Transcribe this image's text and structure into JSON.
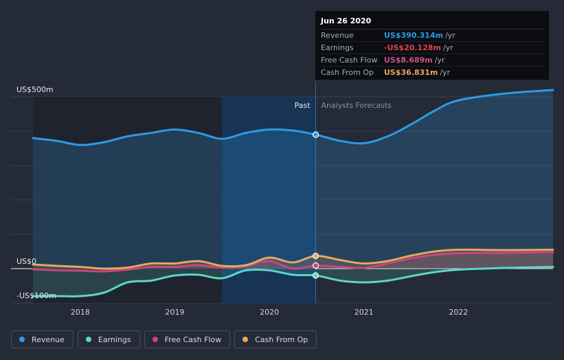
{
  "tooltip": {
    "date": "Jun 26 2020",
    "rows": [
      {
        "label": "Revenue",
        "value": "US$390.314m",
        "unit": "/yr",
        "color": "#2d9be5"
      },
      {
        "label": "Earnings",
        "value": "-US$20.128m",
        "unit": "/yr",
        "color": "#e0464b"
      },
      {
        "label": "Free Cash Flow",
        "value": "US$8.689m",
        "unit": "/yr",
        "color": "#d0527e"
      },
      {
        "label": "Cash From Op",
        "value": "US$36.831m",
        "unit": "/yr",
        "color": "#e8a85c"
      }
    ]
  },
  "legend": [
    {
      "label": "Revenue",
      "color": "#2d9be5"
    },
    {
      "label": "Earnings",
      "color": "#5cd6c9"
    },
    {
      "label": "Free Cash Flow",
      "color": "#c9467e"
    },
    {
      "label": "Cash From Op",
      "color": "#e8a85c"
    }
  ],
  "chart_data": {
    "type": "line",
    "title": "",
    "past_label": "Past",
    "forecast_label": "Analysts Forecasts",
    "y_ticks": [
      {
        "value": 500,
        "label": "US$500m"
      },
      {
        "value": 0,
        "label": "US$0"
      },
      {
        "value": -100,
        "label": "-US$100m"
      }
    ],
    "ylim": [
      -100,
      500
    ],
    "xlim": [
      2017.5,
      2023.0
    ],
    "x_ticks": [
      {
        "value": 2018,
        "label": "2018"
      },
      {
        "value": 2019,
        "label": "2019"
      },
      {
        "value": 2020,
        "label": "2020"
      },
      {
        "value": 2021,
        "label": "2021"
      },
      {
        "value": 2022,
        "label": "2022"
      }
    ],
    "highlight_range": [
      2019.5,
      2020.49
    ],
    "past_end": 2020.49,
    "marker_x": 2020.49,
    "series": [
      {
        "name": "Revenue",
        "color": "#2d9be5",
        "x": [
          2017.5,
          2017.75,
          2018.0,
          2018.25,
          2018.5,
          2018.75,
          2019.0,
          2019.25,
          2019.5,
          2019.75,
          2020.0,
          2020.25,
          2020.49,
          2020.75,
          2021.0,
          2021.25,
          2021.5,
          2021.75,
          2022.0,
          2022.5,
          2023.0
        ],
        "values": [
          380,
          372,
          360,
          368,
          385,
          395,
          405,
          395,
          378,
          395,
          405,
          402,
          390,
          372,
          365,
          385,
          420,
          460,
          490,
          510,
          520
        ]
      },
      {
        "name": "Earnings",
        "color": "#5cd6c9",
        "x": [
          2017.5,
          2017.75,
          2018.0,
          2018.25,
          2018.5,
          2018.75,
          2019.0,
          2019.25,
          2019.5,
          2019.75,
          2020.0,
          2020.25,
          2020.49,
          2020.75,
          2021.0,
          2021.25,
          2021.5,
          2021.75,
          2022.0,
          2022.5,
          2023.0
        ],
        "values": [
          -80,
          -80,
          -80,
          -70,
          -40,
          -35,
          -20,
          -18,
          -28,
          -5,
          -5,
          -18,
          -20,
          -35,
          -40,
          -35,
          -22,
          -10,
          -3,
          2,
          5
        ]
      },
      {
        "name": "Free Cash Flow",
        "color": "#c9467e",
        "x": [
          2017.5,
          2017.75,
          2018.0,
          2018.25,
          2018.5,
          2018.75,
          2019.0,
          2019.25,
          2019.5,
          2019.75,
          2020.0,
          2020.25,
          2020.49,
          2020.75,
          2021.0,
          2021.25,
          2021.5,
          2021.75,
          2022.0,
          2022.5,
          2023.0
        ],
        "values": [
          -2,
          -5,
          -6,
          -8,
          -3,
          5,
          5,
          10,
          3,
          8,
          22,
          0,
          9,
          5,
          2,
          15,
          30,
          40,
          45,
          46,
          48
        ]
      },
      {
        "name": "Cash From Op",
        "color": "#e8a85c",
        "x": [
          2017.5,
          2017.75,
          2018.0,
          2018.25,
          2018.5,
          2018.75,
          2019.0,
          2019.25,
          2019.5,
          2019.75,
          2020.0,
          2020.25,
          2020.49,
          2020.75,
          2021.0,
          2021.25,
          2021.5,
          2021.75,
          2022.0,
          2022.5,
          2023.0
        ],
        "values": [
          12,
          8,
          5,
          0,
          3,
          15,
          15,
          22,
          8,
          10,
          32,
          18,
          37,
          25,
          15,
          22,
          38,
          50,
          55,
          54,
          55
        ]
      }
    ]
  }
}
